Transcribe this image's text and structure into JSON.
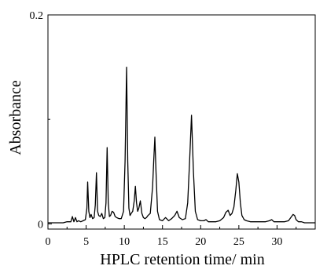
{
  "chart_data": {
    "type": "line",
    "title": "",
    "xlabel": "HPLC retention time/ min",
    "ylabel": "Absorbance",
    "xlim": [
      0,
      35
    ],
    "ylim": [
      -0.005,
      0.2
    ],
    "x_ticks": [
      0,
      5,
      10,
      15,
      20,
      25,
      30
    ],
    "x_tick_labels": [
      "0",
      "5",
      "10",
      "15",
      "20",
      "25",
      "30"
    ],
    "y_ticks": [
      0,
      0.2
    ],
    "y_tick_labels": [
      "0",
      "0.2"
    ],
    "grid": false,
    "legend": "none",
    "line_color": "#000000",
    "series": [
      {
        "x": [
          0,
          2.0,
          2.5,
          3.0,
          3.2,
          3.4,
          3.6,
          3.8,
          4.0,
          4.3,
          4.6,
          4.9,
          5.1,
          5.2,
          5.35,
          5.5,
          5.65,
          5.85,
          6.05,
          6.2,
          6.35,
          6.5,
          6.65,
          6.85,
          7.05,
          7.25,
          7.45,
          7.6,
          7.75,
          7.9,
          8.05,
          8.2,
          8.4,
          8.6,
          8.8,
          9.0,
          9.3,
          9.6,
          9.9,
          10.1,
          10.3,
          10.45,
          10.6,
          10.75,
          10.9,
          11.1,
          11.3,
          11.45,
          11.6,
          11.75,
          11.9,
          12.1,
          12.3,
          12.5,
          12.7,
          12.9,
          13.1,
          13.4,
          13.7,
          13.85,
          14.0,
          14.15,
          14.35,
          14.6,
          15.0,
          15.4,
          15.8,
          16.2,
          16.6,
          16.9,
          17.2,
          17.6,
          18.0,
          18.3,
          18.55,
          18.8,
          19.05,
          19.3,
          19.6,
          20.0,
          20.4,
          20.7,
          21.0,
          21.5,
          22.0,
          22.5,
          23.0,
          23.3,
          23.6,
          23.85,
          24.1,
          24.35,
          24.6,
          24.8,
          25.0,
          25.2,
          25.4,
          25.7,
          26.0,
          26.5,
          27.0,
          27.5,
          28.0,
          28.5,
          29.0,
          29.3,
          29.6,
          30.0,
          30.5,
          31.0,
          31.5,
          31.8,
          32.1,
          32.3,
          32.5,
          32.8,
          33.2,
          33.6,
          34.0,
          34.4,
          34.8,
          35.0
        ],
        "y": [
          0.001,
          0.001,
          0.002,
          0.002,
          0.007,
          0.002,
          0.006,
          0.002,
          0.003,
          0.002,
          0.003,
          0.004,
          0.015,
          0.04,
          0.012,
          0.006,
          0.009,
          0.005,
          0.006,
          0.018,
          0.049,
          0.012,
          0.008,
          0.007,
          0.01,
          0.005,
          0.006,
          0.02,
          0.073,
          0.02,
          0.007,
          0.008,
          0.012,
          0.011,
          0.007,
          0.006,
          0.005,
          0.005,
          0.012,
          0.06,
          0.15,
          0.06,
          0.015,
          0.008,
          0.01,
          0.012,
          0.022,
          0.036,
          0.02,
          0.012,
          0.015,
          0.022,
          0.01,
          0.006,
          0.005,
          0.006,
          0.008,
          0.01,
          0.035,
          0.06,
          0.083,
          0.05,
          0.012,
          0.004,
          0.003,
          0.006,
          0.003,
          0.005,
          0.008,
          0.012,
          0.006,
          0.004,
          0.005,
          0.02,
          0.06,
          0.104,
          0.05,
          0.012,
          0.004,
          0.003,
          0.003,
          0.004,
          0.002,
          0.002,
          0.002,
          0.003,
          0.006,
          0.011,
          0.013,
          0.008,
          0.01,
          0.016,
          0.032,
          0.048,
          0.04,
          0.02,
          0.008,
          0.004,
          0.003,
          0.002,
          0.002,
          0.002,
          0.002,
          0.002,
          0.003,
          0.004,
          0.002,
          0.002,
          0.002,
          0.002,
          0.003,
          0.006,
          0.009,
          0.008,
          0.004,
          0.002,
          0.002,
          0.001,
          0.001,
          0.001,
          0.001,
          0.001
        ]
      }
    ]
  }
}
